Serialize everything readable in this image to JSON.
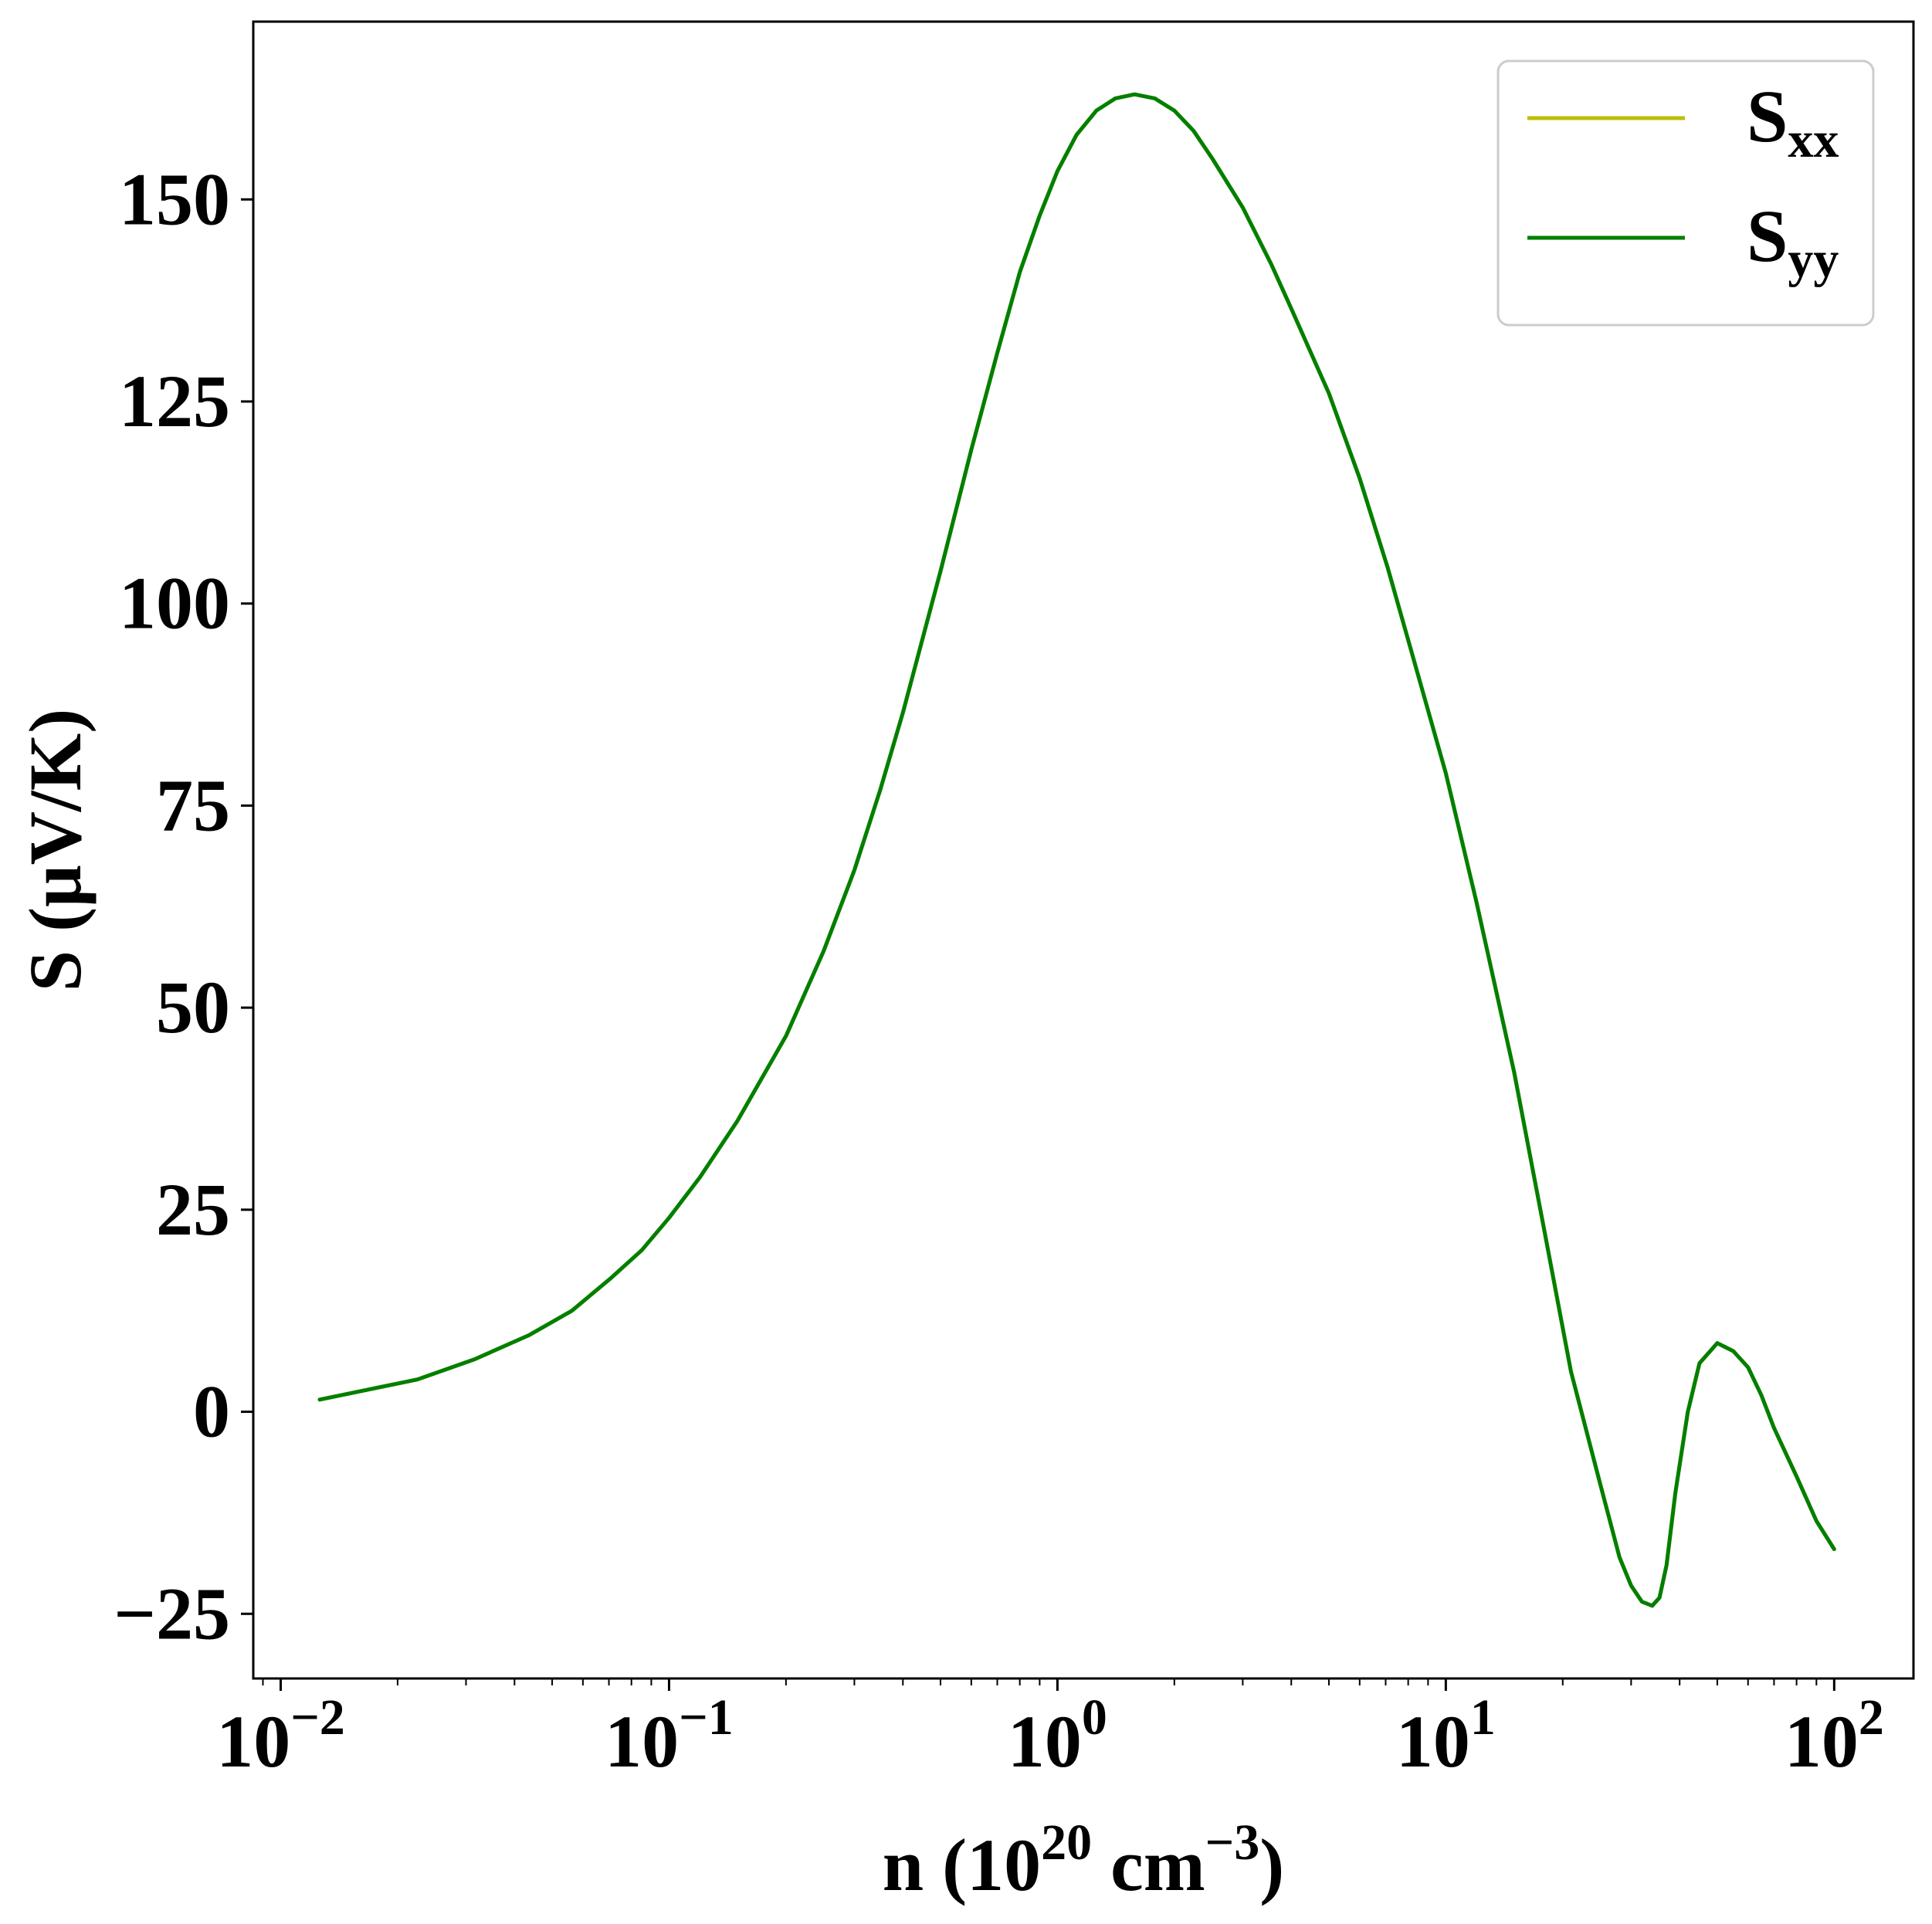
{
  "chart_data": {
    "type": "line",
    "xscale": "log",
    "xlim": [
      0.0085,
      160
    ],
    "ylim": [
      -33,
      172
    ],
    "xlabel": {
      "main": "n (10",
      "sup1": "20",
      "mid": " cm",
      "sup2": "−3",
      "end": ")"
    },
    "ylabel": "S (μV/K)",
    "xticks": [
      {
        "value": 0.01,
        "base": "10",
        "exp": "−2"
      },
      {
        "value": 0.1,
        "base": "10",
        "exp": "−1"
      },
      {
        "value": 1,
        "base": "10",
        "exp": "0"
      },
      {
        "value": 10,
        "base": "10",
        "exp": "1"
      },
      {
        "value": 100,
        "base": "10",
        "exp": "2"
      }
    ],
    "yticks": [
      {
        "value": -25,
        "label": "−25"
      },
      {
        "value": 0,
        "label": "0"
      },
      {
        "value": 25,
        "label": "25"
      },
      {
        "value": 50,
        "label": "50"
      },
      {
        "value": 75,
        "label": "75"
      },
      {
        "value": 100,
        "label": "100"
      },
      {
        "value": 125,
        "label": "125"
      },
      {
        "value": 150,
        "label": "150"
      }
    ],
    "grid": false,
    "legend_position": "top-right",
    "series": [
      {
        "name": "S",
        "sub": "xx",
        "color": "#bfbf00",
        "x": [
          0.0126,
          0.0225,
          0.0316,
          0.0437,
          0.0562,
          0.0707,
          0.0851,
          0.1,
          0.12,
          0.15,
          0.2,
          0.25,
          0.3,
          0.35,
          0.4,
          0.5,
          0.6,
          0.7,
          0.8,
          0.9,
          1.0,
          1.12,
          1.26,
          1.41,
          1.58,
          1.78,
          2.0,
          2.24,
          2.51,
          3.0,
          3.55,
          4.0,
          5.0,
          6.0,
          7.08,
          8.0,
          10.0,
          12.0,
          15.0,
          18.0,
          21.0,
          25.0,
          28.0,
          30.0,
          32.0,
          34.0,
          35.5,
          37.0,
          39.0,
          42.0,
          45.0,
          50.0,
          55.0,
          60.0,
          65.0,
          70.0,
          80.0,
          90.0,
          100.0
        ],
        "y": [
          1.5,
          4,
          6.5,
          9.5,
          12.5,
          16.5,
          20,
          24,
          29,
          36,
          46.5,
          57,
          67,
          77,
          86.5,
          104,
          119,
          131,
          141,
          148,
          153.5,
          158,
          161,
          162.5,
          163,
          162.5,
          161,
          158.5,
          155,
          149,
          142,
          136.5,
          126,
          115.5,
          104.5,
          95.5,
          79,
          63,
          42,
          22,
          5,
          -9,
          -18,
          -21.5,
          -23.5,
          -24,
          -23,
          -19,
          -10,
          0,
          6,
          8.5,
          7.5,
          5.5,
          2,
          -2,
          -8,
          -13.5,
          -17
        ]
      },
      {
        "name": "S",
        "sub": "yy",
        "color": "#007f00",
        "x": [
          0.0126,
          0.0225,
          0.0316,
          0.0437,
          0.0562,
          0.0707,
          0.0851,
          0.1,
          0.12,
          0.15,
          0.2,
          0.25,
          0.3,
          0.35,
          0.4,
          0.5,
          0.6,
          0.7,
          0.8,
          0.9,
          1.0,
          1.12,
          1.26,
          1.41,
          1.58,
          1.78,
          2.0,
          2.24,
          2.51,
          3.0,
          3.55,
          4.0,
          5.0,
          6.0,
          7.08,
          8.0,
          10.0,
          12.0,
          15.0,
          18.0,
          21.0,
          25.0,
          28.0,
          30.0,
          32.0,
          34.0,
          35.5,
          37.0,
          39.0,
          42.0,
          45.0,
          50.0,
          55.0,
          60.0,
          65.0,
          70.0,
          80.0,
          90.0,
          100.0
        ],
        "y": [
          1.5,
          4,
          6.5,
          9.5,
          12.5,
          16.5,
          20,
          24,
          29,
          36,
          46.5,
          57,
          67,
          77,
          86.5,
          104,
          119,
          131,
          141,
          148,
          153.5,
          158,
          161,
          162.5,
          163,
          162.5,
          161,
          158.5,
          155,
          149,
          142,
          136.5,
          126,
          115.5,
          104.5,
          95.5,
          79,
          63,
          42,
          22,
          5,
          -9,
          -18,
          -21.5,
          -23.5,
          -24,
          -23,
          -19,
          -10,
          0,
          6,
          8.5,
          7.5,
          5.5,
          2,
          -2,
          -8,
          -13.5,
          -17
        ]
      }
    ]
  }
}
